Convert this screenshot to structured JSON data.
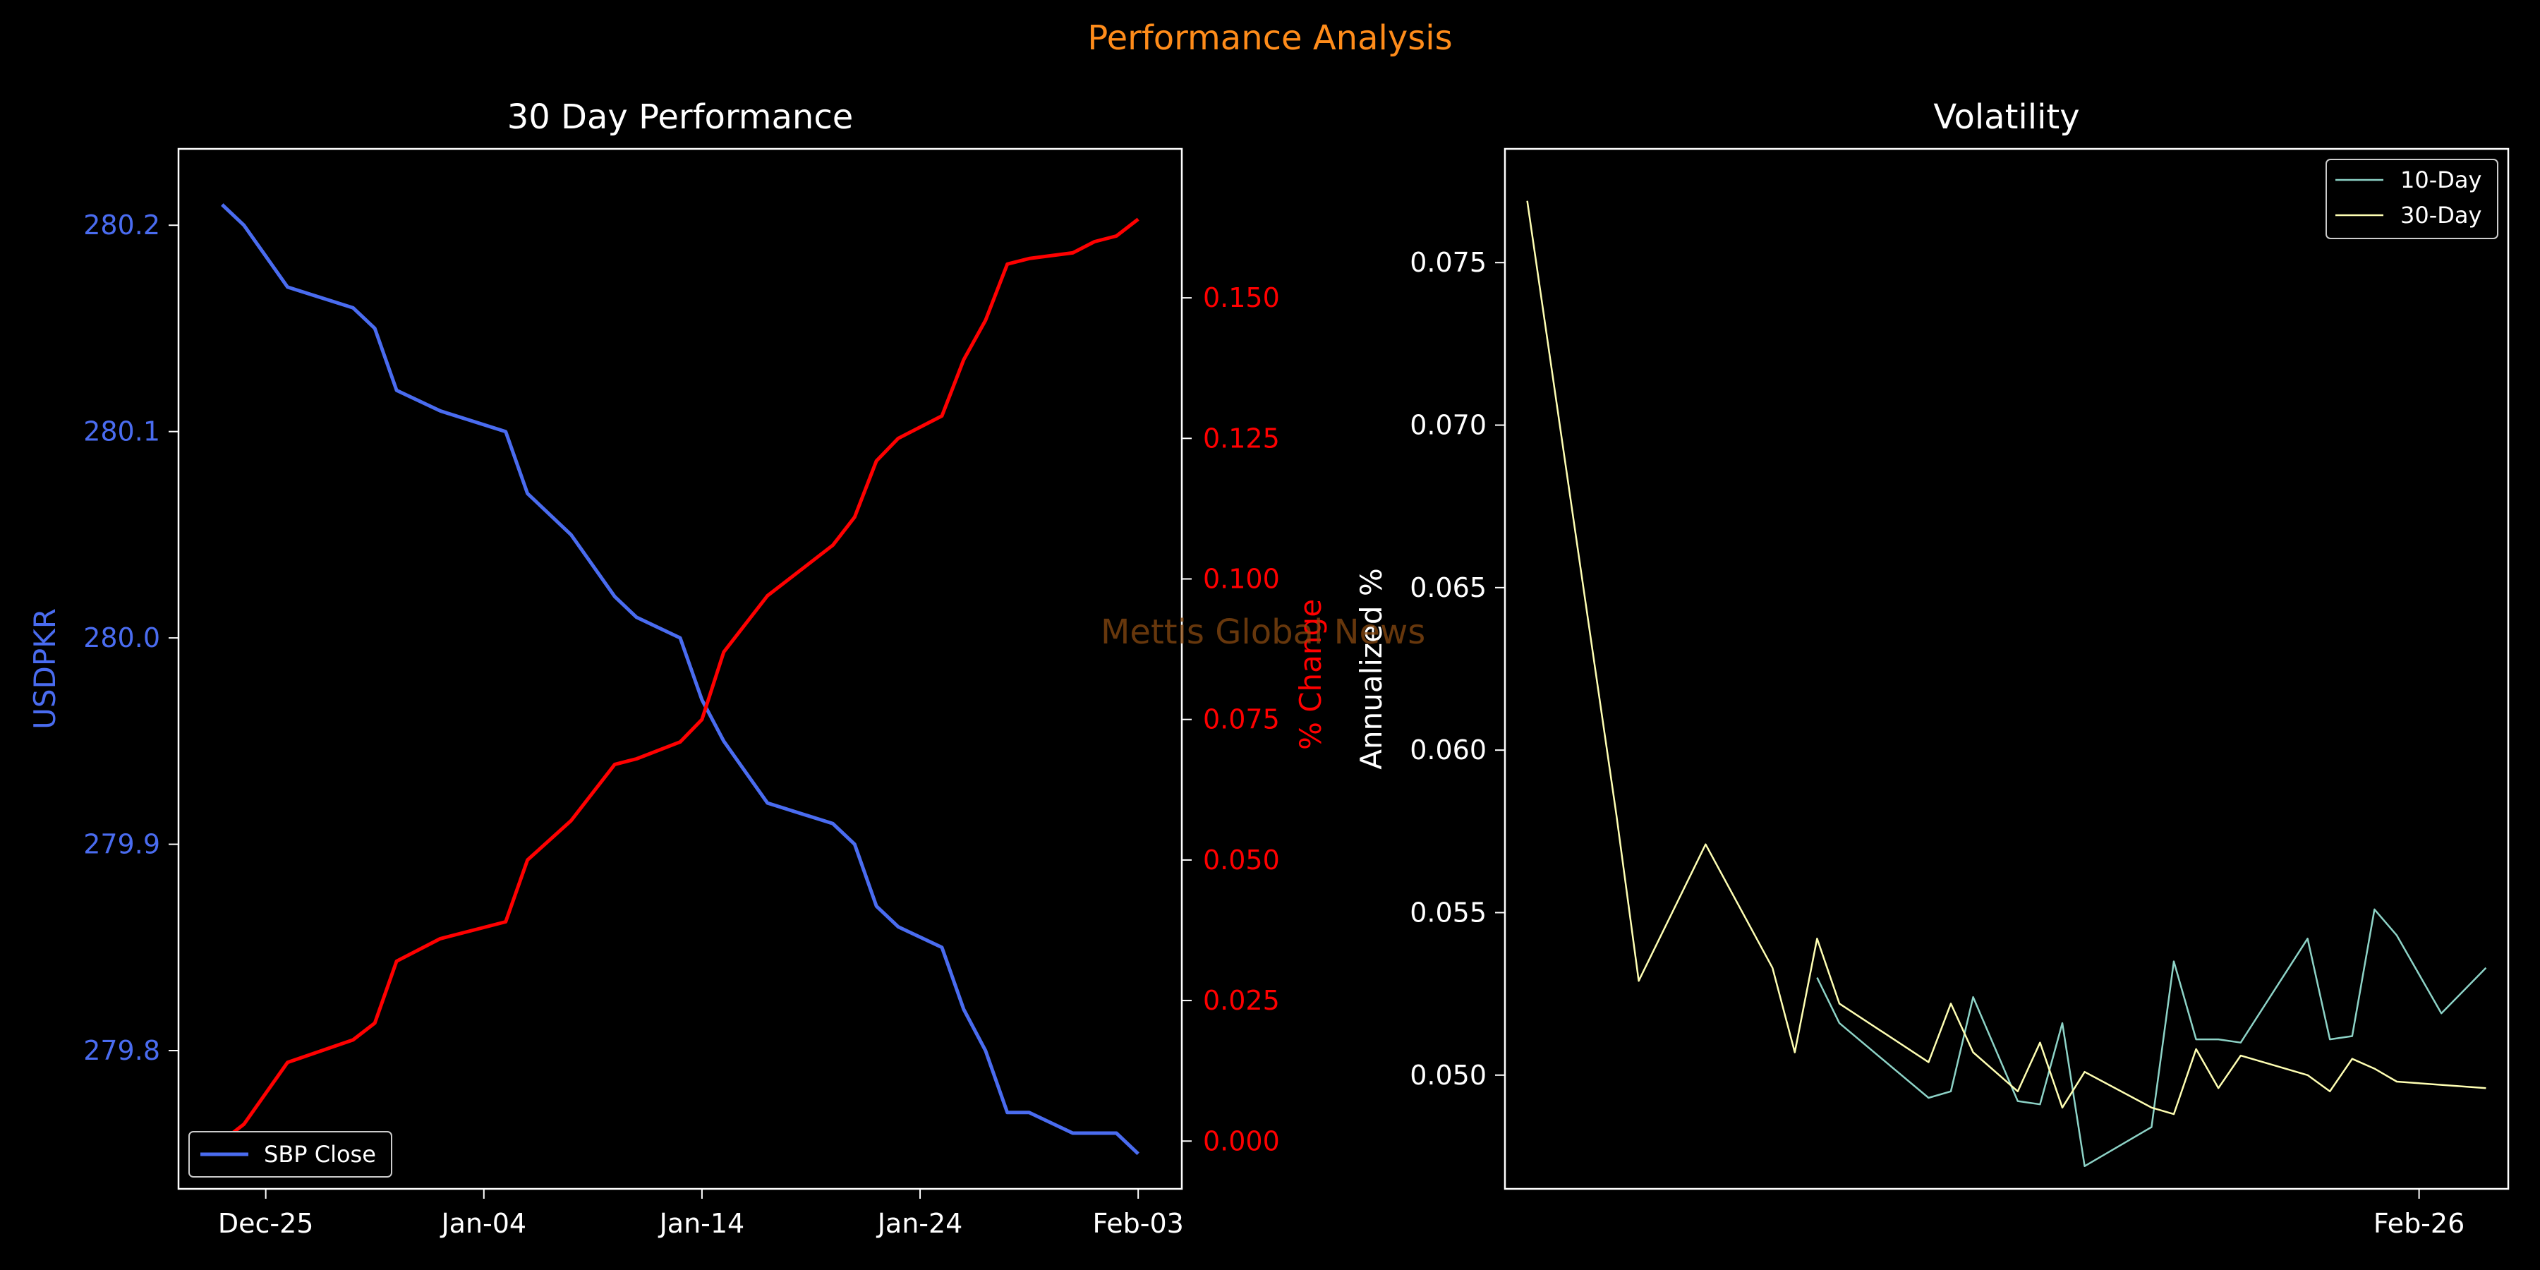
{
  "suptitle": "Performance Analysis",
  "watermark": "Mettis Global News",
  "colors": {
    "background": "#000000",
    "price_line": "#4a6cf0",
    "pct_line": "#ff0000",
    "vol10": "#8dd3c7",
    "vol30": "#ffffb3",
    "suptitle": "#ff8c1a",
    "text": "#ffffff"
  },
  "chart_data": [
    {
      "id": "perf",
      "type": "line",
      "title": "30 Day Performance",
      "x": [
        "2023-12-23",
        "2023-12-24",
        "2023-12-26",
        "2023-12-29",
        "2023-12-30",
        "2023-12-31",
        "2024-01-02",
        "2024-01-05",
        "2024-01-06",
        "2024-01-08",
        "2024-01-10",
        "2024-01-11",
        "2024-01-13",
        "2024-01-14",
        "2024-01-15",
        "2024-01-17",
        "2024-01-20",
        "2024-01-21",
        "2024-01-22",
        "2024-01-23",
        "2024-01-25",
        "2024-01-26",
        "2024-01-27",
        "2024-01-28",
        "2024-01-29",
        "2024-01-31",
        "2024-02-01",
        "2024-02-02",
        "2024-02-03"
      ],
      "xlabel": "",
      "xticks": [
        "2023-12-25",
        "2024-01-04",
        "2024-01-14",
        "2024-01-24",
        "2024-02-03"
      ],
      "xtick_labels": [
        "Dec-25",
        "Jan-04",
        "Jan-14",
        "Jan-24",
        "Feb-03"
      ],
      "xlim": [
        "2023-12-21",
        "2024-02-05"
      ],
      "left_axis": {
        "label": "USDPKR",
        "ylim": [
          279.733,
          280.237
        ],
        "ticks": [
          279.8,
          279.9,
          280.0,
          280.1,
          280.2
        ],
        "tick_labels": [
          "279.8",
          "279.9",
          "280.0",
          "280.1",
          "280.2"
        ]
      },
      "right_axis": {
        "label": "% Change",
        "ylim": [
          -0.0085,
          0.1765
        ],
        "ticks": [
          0.0,
          0.025,
          0.05,
          0.075,
          0.1,
          0.125,
          0.15
        ],
        "tick_labels": [
          "0.000",
          "0.025",
          "0.050",
          "0.075",
          "0.100",
          "0.125",
          "0.150"
        ]
      },
      "series": [
        {
          "name": "SBP Close",
          "axis": "left",
          "color": "#4a6cf0",
          "values": [
            280.21,
            280.2,
            280.17,
            280.16,
            280.15,
            280.12,
            280.11,
            280.1,
            280.07,
            280.05,
            280.02,
            280.01,
            280.0,
            279.97,
            279.95,
            279.92,
            279.91,
            279.9,
            279.87,
            279.86,
            279.85,
            279.82,
            279.8,
            279.77,
            279.77,
            279.76,
            279.76,
            279.76,
            279.75
          ]
        },
        {
          "axis": "right",
          "color": "#ff0000",
          "values": [
            0.0,
            0.003,
            0.014,
            0.018,
            0.021,
            0.032,
            0.036,
            0.039,
            0.05,
            0.057,
            0.067,
            0.068,
            0.071,
            0.075,
            0.087,
            0.097,
            0.106,
            0.111,
            0.121,
            0.125,
            0.129,
            0.139,
            0.146,
            0.156,
            0.157,
            0.158,
            0.16,
            0.161,
            0.164
          ]
        }
      ],
      "legend": {
        "position": "lower-left",
        "entries": [
          "SBP Close"
        ]
      },
      "grid": false
    },
    {
      "id": "vol",
      "type": "line",
      "title": "Volatility",
      "xlabel": "",
      "ylabel": "Annualized %",
      "x": [
        "2025-01-17",
        "2025-01-21",
        "2025-01-22",
        "2025-01-25",
        "2025-01-28",
        "2025-01-29",
        "2025-01-30",
        "2025-01-31",
        "2025-02-04",
        "2025-02-05",
        "2025-02-06",
        "2025-02-08",
        "2025-02-09",
        "2025-02-10",
        "2025-02-11",
        "2025-02-14",
        "2025-02-15",
        "2025-02-16",
        "2025-02-17",
        "2025-02-18",
        "2025-02-21",
        "2025-02-22",
        "2025-02-23",
        "2025-02-24",
        "2025-02-25",
        "2025-02-27",
        "2025-03-01"
      ],
      "xticks": [
        "2025-02-26"
      ],
      "xtick_labels": [
        "Feb-26"
      ],
      "xlim": [
        "2025-01-16",
        "2025-03-02"
      ],
      "ylim": [
        0.0465,
        0.0785
      ],
      "yticks": [
        0.05,
        0.055,
        0.06,
        0.065,
        0.07,
        0.075
      ],
      "ytick_labels": [
        "0.050",
        "0.055",
        "0.060",
        "0.065",
        "0.070",
        "0.075"
      ],
      "series": [
        {
          "name": "10-Day",
          "color": "#8dd3c7",
          "values": [
            null,
            null,
            null,
            null,
            null,
            null,
            0.053,
            0.0516,
            0.0493,
            0.0495,
            0.0524,
            0.0492,
            0.0491,
            0.0516,
            0.0472,
            0.0484,
            0.0535,
            0.0511,
            0.0511,
            0.051,
            0.0542,
            0.0511,
            0.0512,
            0.0551,
            0.0543,
            0.0519,
            0.0533
          ]
        },
        {
          "name": "30-Day",
          "color": "#ffffb3",
          "values": [
            0.0769,
            0.058,
            0.0529,
            0.0571,
            0.0533,
            0.0507,
            0.0542,
            0.0522,
            0.0504,
            0.0522,
            0.0507,
            0.0495,
            0.051,
            0.049,
            0.0501,
            0.049,
            0.0488,
            0.0508,
            0.0496,
            0.0506,
            0.05,
            0.0495,
            0.0505,
            0.0502,
            0.0498,
            0.0497,
            0.0496
          ]
        }
      ],
      "legend": {
        "position": "upper-right",
        "entries": [
          "10-Day",
          "30-Day"
        ]
      },
      "grid": false
    }
  ]
}
